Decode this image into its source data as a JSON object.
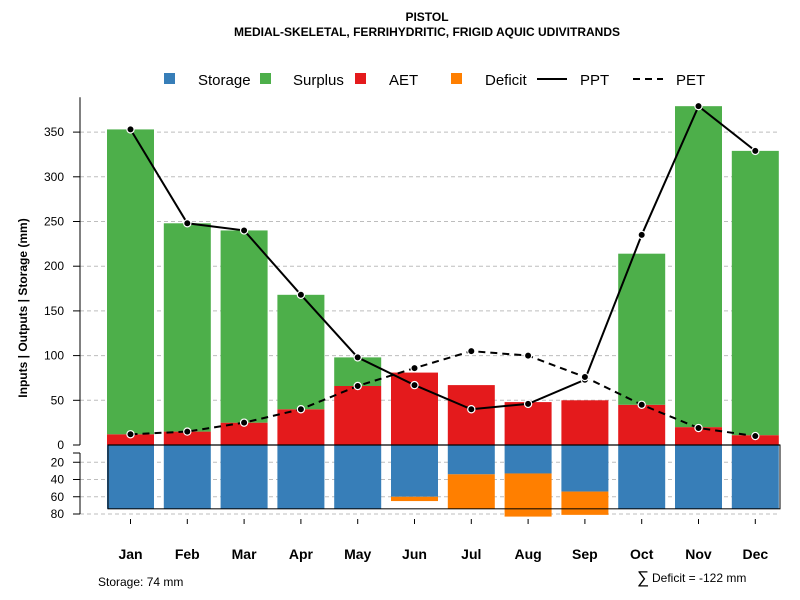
{
  "chart_data": {
    "type": "bar",
    "title": "PISTOL",
    "subtitle": "MEDIAL-SKELETAL, FERRIHYDRITIC, FRIGID AQUIC UDIVITRANDS",
    "ylabel": "Inputs | Outputs | Storage    (mm)",
    "categories": [
      "Jan",
      "Feb",
      "Mar",
      "Apr",
      "May",
      "Jun",
      "Jul",
      "Aug",
      "Sep",
      "Oct",
      "Nov",
      "Dec"
    ],
    "upper_yticks": [
      0,
      50,
      100,
      150,
      200,
      250,
      300,
      350
    ],
    "lower_yticks": [
      20,
      40,
      60,
      80
    ],
    "ylim_upper": [
      0,
      380
    ],
    "ylim_lower": [
      0,
      80
    ],
    "legend": {
      "storage": "Storage",
      "surplus": "Surplus",
      "aet": "AET",
      "deficit": "Deficit",
      "ppt": "PPT",
      "pet": "PET"
    },
    "colors": {
      "storage": "#377EB8",
      "surplus": "#4DAF4A",
      "aet": "#E41A1C",
      "deficit": "#FF7F00",
      "line": "#000000"
    },
    "series": [
      {
        "name": "AET",
        "values": [
          12,
          15,
          25,
          40,
          66,
          81,
          67,
          48,
          50,
          45,
          20,
          11
        ]
      },
      {
        "name": "Surplus",
        "values": [
          341,
          233,
          215,
          128,
          32,
          0,
          0,
          0,
          0,
          169,
          359,
          318
        ]
      },
      {
        "name": "PPT",
        "values": [
          353,
          248,
          240,
          168,
          98,
          67,
          40,
          46,
          73,
          235,
          379,
          329
        ]
      },
      {
        "name": "PET",
        "values": [
          12,
          15,
          25,
          40,
          66,
          86,
          105,
          100,
          76,
          45,
          19,
          10
        ]
      },
      {
        "name": "Storage",
        "values": [
          74,
          74,
          74,
          74,
          74,
          60,
          34,
          33,
          54,
          74,
          74,
          74
        ]
      },
      {
        "name": "Deficit",
        "values": [
          0,
          0,
          0,
          0,
          0,
          5,
          40,
          50,
          27,
          0,
          0,
          0
        ]
      }
    ]
  },
  "footer": {
    "storage_text": "Storage: 74 mm",
    "deficit_text": "Deficit = -122 mm",
    "sum_symbol": "∑"
  }
}
